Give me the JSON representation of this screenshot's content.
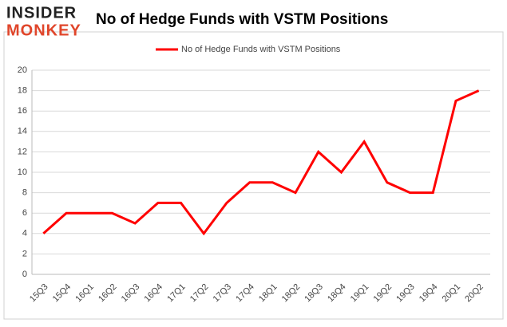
{
  "logo": {
    "line1": "INSIDER",
    "line2": "MONKEY"
  },
  "chart_data": {
    "type": "line",
    "title": "No of Hedge Funds with VSTM Positions",
    "categories": [
      "15Q3",
      "15Q4",
      "16Q1",
      "16Q2",
      "16Q3",
      "16Q4",
      "17Q1",
      "17Q2",
      "17Q3",
      "17Q4",
      "18Q1",
      "18Q2",
      "18Q3",
      "18Q4",
      "19Q1",
      "19Q2",
      "19Q3",
      "19Q4",
      "20Q1",
      "20Q2"
    ],
    "series": [
      {
        "name": "No of Hedge Funds with VSTM Positions",
        "color": "#ff0000",
        "values": [
          4,
          6,
          6,
          6,
          5,
          7,
          7,
          4,
          7,
          9,
          9,
          8,
          12,
          10,
          13,
          9,
          8,
          8,
          17,
          18
        ]
      }
    ],
    "ylim": [
      0,
      20
    ],
    "yticks": [
      0,
      2,
      4,
      6,
      8,
      10,
      12,
      14,
      16,
      18,
      20
    ],
    "grid": true,
    "legend": "top"
  }
}
